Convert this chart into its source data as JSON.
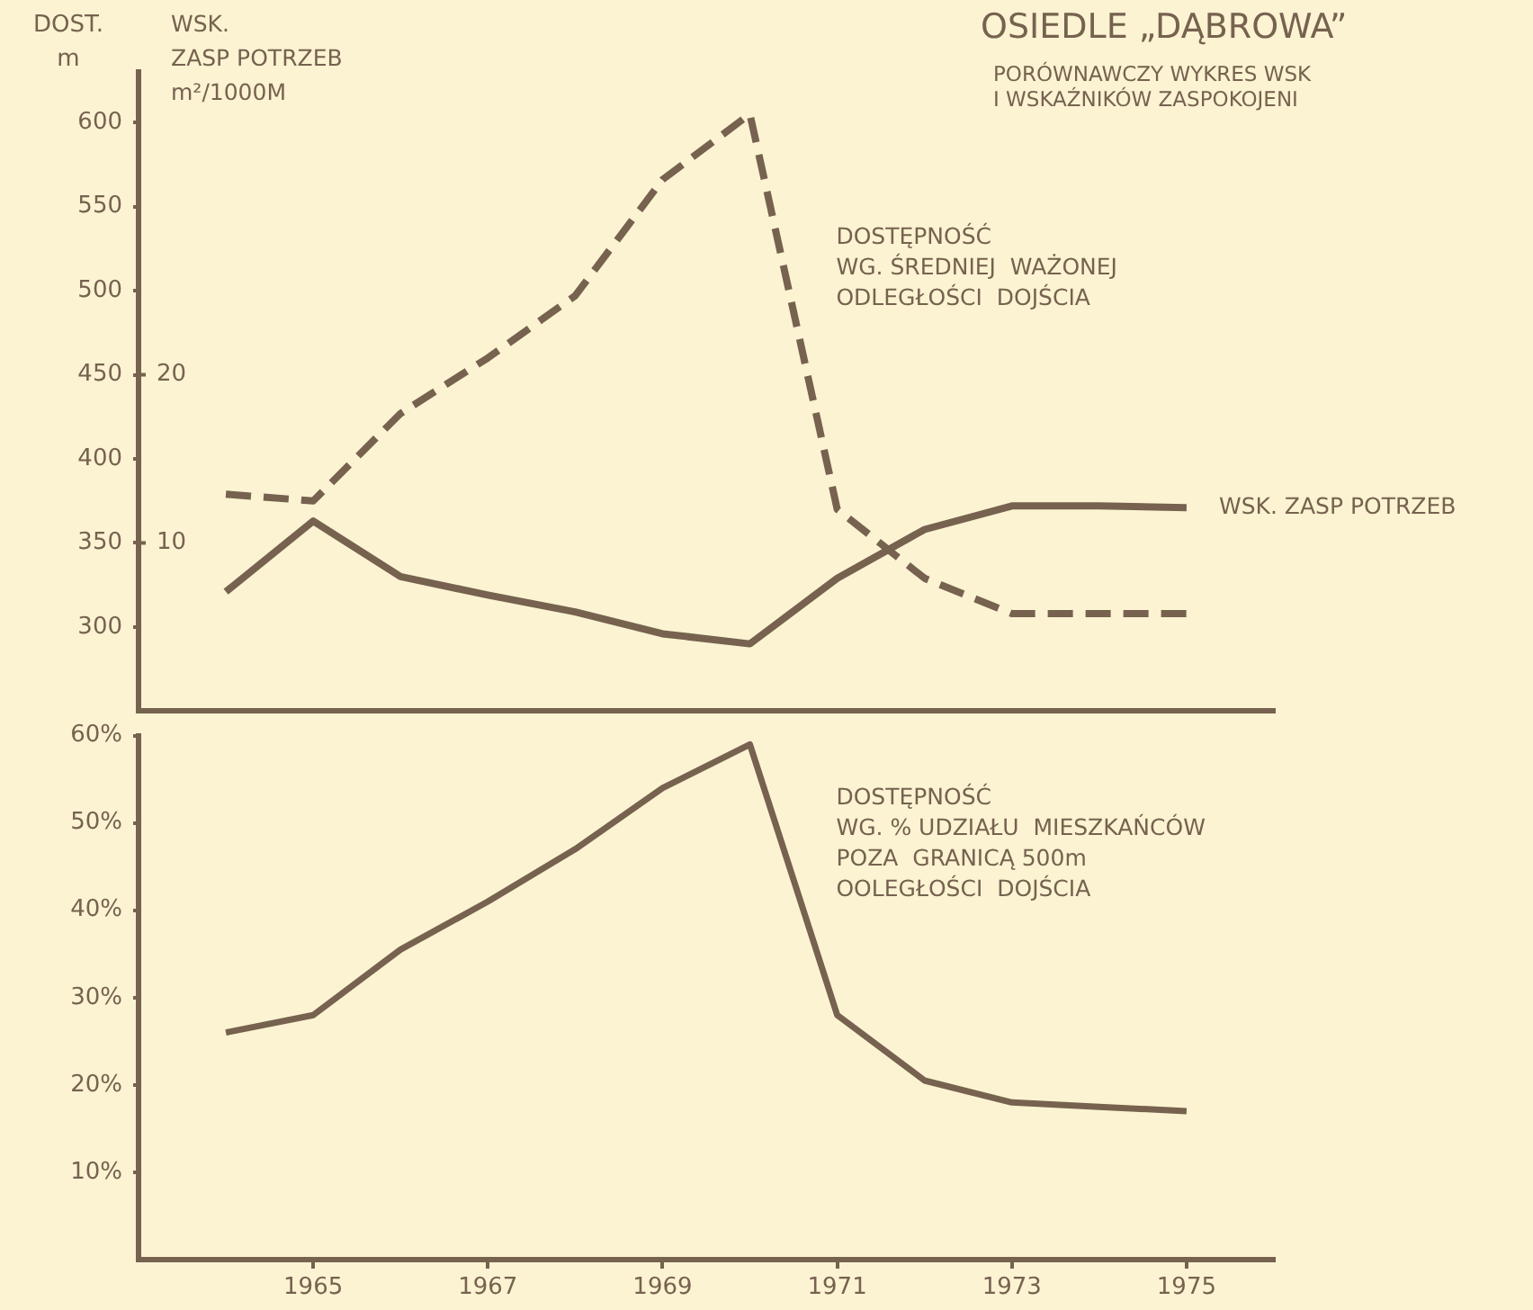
{
  "chart_data": [
    {
      "type": "line",
      "title": "OSIEDLE „DĄBROWA”",
      "subtitle": "PORÓWNAWCZY WYKRES WSK\nI WSKAŹNIKÓW ZASPOKOJENI",
      "ylabel": "DOST.\nm",
      "y2label": "WSK.\nZASP POTRZEB\nm²/1000M",
      "x": [
        1964,
        1965,
        1966,
        1967,
        1968,
        1969,
        1970,
        1971,
        1972,
        1973,
        1974,
        1975
      ],
      "xlim": [
        1963,
        1976
      ],
      "xticks": [
        1965,
        1967,
        1969,
        1971,
        1973,
        1975
      ],
      "ylim": [
        250,
        630
      ],
      "yticks": [
        300,
        350,
        400,
        450,
        500,
        550,
        600
      ],
      "y2lim": [
        0,
        38
      ],
      "y2ticks": [
        10,
        20
      ],
      "tick_labels": "y",
      "grid": false,
      "legend": false,
      "marker": "none",
      "series": [
        {
          "name": "DOSTĘPNOŚĆ\nWG. ŚREDNIEJ  WAŻONEJ\nODLEGŁOŚCI  DOJŚCIA",
          "color": "#76624f",
          "line_style": "dashed",
          "values": [
            379,
            375,
            427,
            460,
            497,
            566,
            605,
            370,
            329,
            308,
            308,
            308
          ]
        },
        {
          "name": "WSK. ZASP POTRZEB",
          "color": "#76624f",
          "line_style": "solid",
          "axis": "y2",
          "values": [
            7.1,
            11.3,
            8.0,
            6.9,
            5.9,
            4.6,
            4.0,
            7.9,
            10.8,
            12.2,
            12.2,
            12.1
          ]
        }
      ]
    },
    {
      "type": "line",
      "x": [
        1964,
        1965,
        1966,
        1967,
        1968,
        1969,
        1970,
        1971,
        1972,
        1973,
        1974,
        1975
      ],
      "xlim": [
        1963,
        1976
      ],
      "xticks": [
        1965,
        1967,
        1969,
        1971,
        1973,
        1975
      ],
      "ylim": [
        0,
        60
      ],
      "yticks": [
        {
          "value": 10,
          "label": "10%"
        },
        {
          "value": 20,
          "label": "20%"
        },
        {
          "value": 30,
          "label": "30%"
        },
        {
          "value": 40,
          "label": "40%"
        },
        {
          "value": 50,
          "label": "50%"
        },
        {
          "value": 60,
          "label": "60%"
        }
      ],
      "grid": false,
      "legend": false,
      "marker": "none",
      "series": [
        {
          "name": "DOSTĘPNOŚĆ\nWG. % UDZIAŁU  MIESZKAŃCÓW\nPOZA  GRANICĄ 500m\nOOLEGŁOŚCI  DOJŚCIA",
          "color": "#76624f",
          "line_style": "solid",
          "values": [
            26,
            28,
            35.5,
            41,
            47,
            54,
            59,
            28,
            20.5,
            18,
            17.5,
            17
          ]
        }
      ]
    }
  ]
}
